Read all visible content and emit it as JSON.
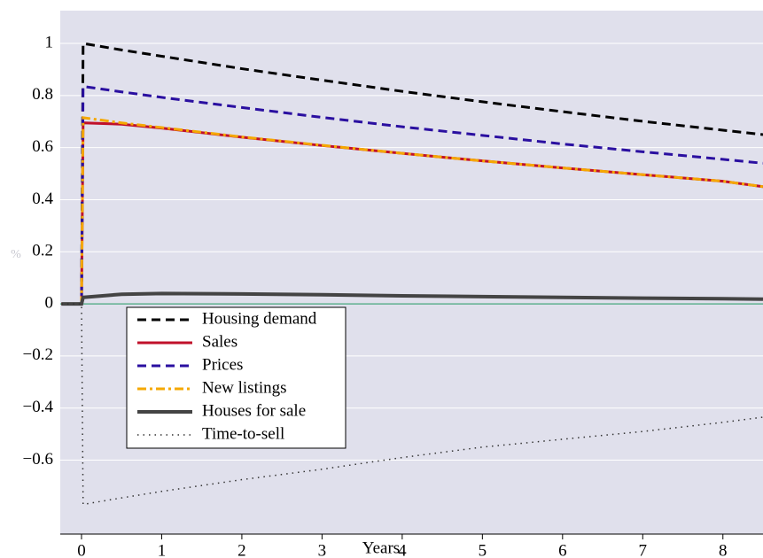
{
  "chart_data": {
    "type": "line",
    "x_label": "Years",
    "y_label": "%",
    "x": [
      -0.25,
      0,
      0.02,
      0.5,
      1,
      2,
      3,
      4,
      5,
      6,
      7,
      8,
      8.5
    ],
    "series": [
      {
        "name": "Housing demand",
        "color": "#000000",
        "dash": "10,6",
        "width": 3,
        "values": [
          0,
          0,
          1,
          0.975,
          0.951,
          0.903,
          0.859,
          0.816,
          0.776,
          0.738,
          0.701,
          0.667,
          0.65
        ]
      },
      {
        "name": "Sales",
        "color": "#c0102a",
        "dash": "none",
        "width": 3,
        "values": [
          0,
          0,
          0.695,
          0.69,
          0.675,
          0.64,
          0.608,
          0.578,
          0.549,
          0.522,
          0.496,
          0.471,
          0.45
        ]
      },
      {
        "name": "Prices",
        "color": "#2a0fa0",
        "dash": "10,6",
        "width": 3,
        "values": [
          0,
          0,
          0.835,
          0.814,
          0.793,
          0.754,
          0.716,
          0.68,
          0.647,
          0.614,
          0.584,
          0.555,
          0.54
        ]
      },
      {
        "name": "New listings",
        "color": "#f5a800",
        "dash": "10,4,3,4",
        "width": 3,
        "values": [
          0,
          0,
          0.715,
          0.695,
          0.677,
          0.641,
          0.609,
          0.578,
          0.549,
          0.522,
          0.496,
          0.471,
          0.45
        ]
      },
      {
        "name": "Houses for sale",
        "color": "#444444",
        "dash": "none",
        "width": 4,
        "values": [
          0,
          0,
          0.025,
          0.037,
          0.04,
          0.038,
          0.035,
          0.031,
          0.028,
          0.025,
          0.022,
          0.02,
          0.018
        ]
      },
      {
        "name": "Time-to-sell",
        "color": "#333333",
        "dash": "1.5,5",
        "width": 1.5,
        "values": [
          0,
          0,
          -0.77,
          -0.745,
          -0.72,
          -0.675,
          -0.635,
          -0.59,
          -0.55,
          -0.52,
          -0.49,
          -0.455,
          -0.435
        ]
      }
    ],
    "xlim": [
      -0.265,
      8.5
    ],
    "ylim": [
      -0.884,
      1.126
    ],
    "xticks": [
      0,
      1,
      2,
      3,
      4,
      5,
      6,
      7,
      8
    ],
    "yticks": [
      {
        "value": -0.6,
        "label": "−0.6"
      },
      {
        "value": -0.4,
        "label": "−0.4"
      },
      {
        "value": -0.2,
        "label": "−0.2"
      },
      0,
      0.2,
      0.4,
      0.6,
      0.8,
      1
    ],
    "grid": true,
    "zero_line_color": "#5fb08f",
    "background": "#e0e0ec",
    "legend_loc": "lower left"
  }
}
